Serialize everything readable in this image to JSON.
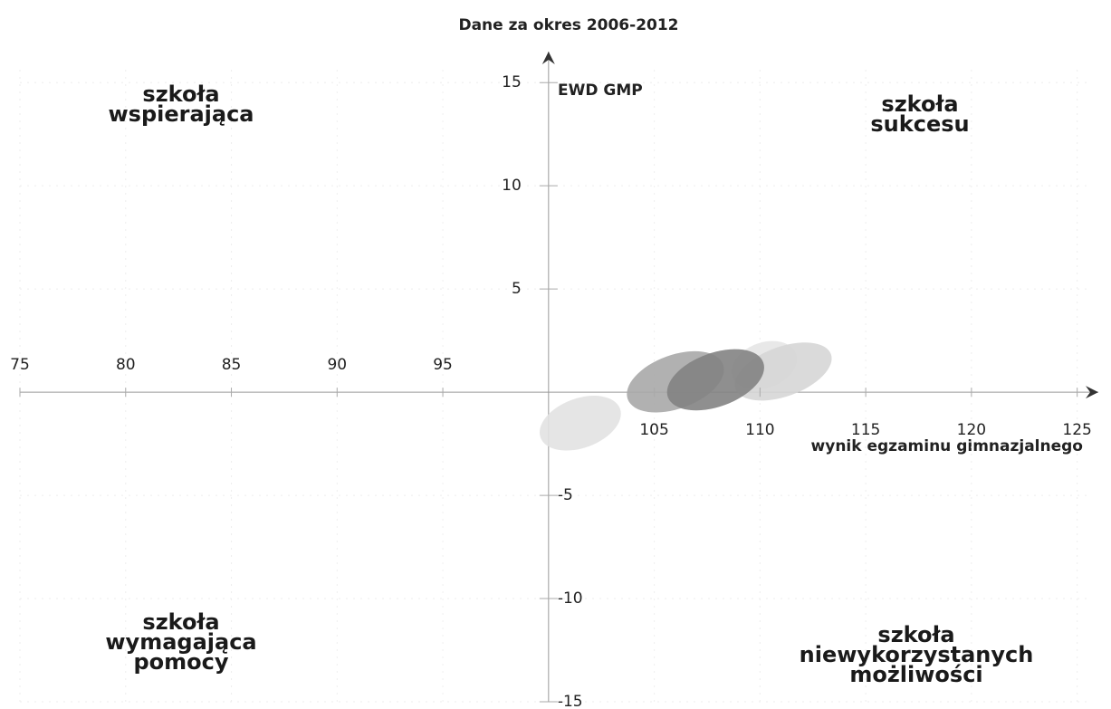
{
  "chart_data": {
    "type": "ellipse_scatter",
    "title": "Dane za okres 2006-2012",
    "x_label": "wynik egzaminu gimnazjalnego",
    "y_label": "EWD GMP",
    "xlim": [
      75,
      126
    ],
    "ylim": [
      -15,
      16.5
    ],
    "xticks": [
      75,
      80,
      85,
      90,
      95,
      105,
      110,
      115,
      120,
      125
    ],
    "yticks": [
      15,
      10,
      5,
      -5,
      -10,
      -15
    ],
    "grid": true,
    "ellipse_angle": -20,
    "ellipses": [
      {
        "x": 101.5,
        "y": -1.5,
        "rx": 2.0,
        "ry": 1.2,
        "color": "#e2e2e2"
      },
      {
        "x": 110.2,
        "y": 1.3,
        "rx": 1.6,
        "ry": 1.1,
        "color": "#e6e6e6"
      },
      {
        "x": 111.1,
        "y": 1.0,
        "rx": 2.4,
        "ry": 1.2,
        "color": "#d6d6d6"
      },
      {
        "x": 106.0,
        "y": 0.5,
        "rx": 2.4,
        "ry": 1.3,
        "color": "#a9a9a9"
      },
      {
        "x": 107.9,
        "y": 0.6,
        "rx": 2.4,
        "ry": 1.3,
        "color": "#838383"
      }
    ],
    "quadrants": [
      {
        "lines": [
          "szkoła",
          "wspierająca"
        ]
      },
      {
        "lines": [
          "szkoła",
          "sukcesu"
        ]
      },
      {
        "lines": [
          "szkoła",
          "wymagająca",
          "pomocy"
        ]
      },
      {
        "lines": [
          "szkoła",
          "niewykorzystanych",
          "możliwości"
        ]
      }
    ]
  }
}
